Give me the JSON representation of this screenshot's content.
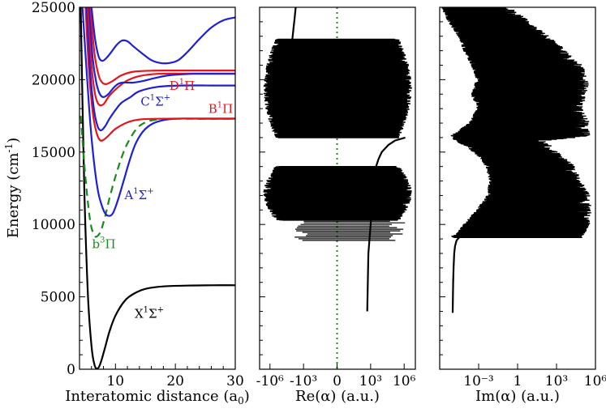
{
  "chart_data": [
    {
      "type": "line",
      "panel": "potential-curves",
      "xlabel": "Interatomic distance (a",
      "xlabel_sub": "0",
      "xlabel_tail": ")",
      "ylabel": "Energy (cm",
      "ylabel_sup": "-1",
      "ylabel_tail": ")",
      "xlim": [
        4,
        30
      ],
      "ylim": [
        0,
        25000
      ],
      "xticks": [
        10,
        20,
        30
      ],
      "yticks": [
        0,
        5000,
        10000,
        15000,
        20000,
        25000
      ],
      "xtick_labels": [
        "10",
        "20",
        "30"
      ],
      "ytick_labels": [
        "0",
        "5000",
        "10000",
        "15000",
        "20000",
        "25000"
      ],
      "grid": false,
      "colors": {
        "sigma": "#1f1fd6",
        "pi": "#e8141c",
        "triplet": "#1a8a1a",
        "ground": "#000000"
      },
      "series": [
        {
          "name": "X1Σ+",
          "label_main": "X",
          "label_sup": "1",
          "label_greek": "Σ",
          "label_sup2": "+",
          "color": "#000000",
          "style": "solid",
          "x": [
            4.2,
            4.8,
            5.4,
            6.0,
            6.5,
            7.0,
            7.5,
            8.2,
            9.0,
            10.0,
            11.5,
            13,
            15,
            18,
            22,
            26,
            30
          ],
          "y": [
            25000,
            12500,
            5200,
            1600,
            300,
            50,
            400,
            1400,
            2600,
            3700,
            4700,
            5200,
            5550,
            5720,
            5780,
            5800,
            5800
          ]
        },
        {
          "name": "b3Π",
          "label_main": "b",
          "label_sup": "3",
          "label_greek": "Π",
          "label_sup2": "",
          "color": "#1a8a1a",
          "style": "dashed",
          "x": [
            4.2,
            5.0,
            5.8,
            6.5,
            7.0,
            7.6,
            8.3,
            9.0,
            10.0,
            11.0,
            12.0,
            13.5,
            15,
            17,
            20,
            25,
            30
          ],
          "y": [
            17500,
            13200,
            10200,
            9250,
            9200,
            9600,
            10600,
            11800,
            13300,
            14600,
            15600,
            16600,
            17050,
            17250,
            17300,
            17300,
            17300
          ]
        },
        {
          "name": "A1Σ+",
          "label_main": "A",
          "label_sup": "1",
          "label_greek": "Σ",
          "label_sup2": "+",
          "color": "#1f1fd6",
          "style": "solid",
          "x": [
            4.5,
            5.2,
            6.0,
            7.0,
            8.0,
            8.8,
            9.6,
            10.5,
            11.5,
            12.5,
            13.5,
            15,
            17,
            20,
            25,
            30
          ],
          "y": [
            25000,
            20500,
            16000,
            12500,
            11000,
            10600,
            10800,
            11800,
            13200,
            14600,
            15700,
            16600,
            17100,
            17300,
            17300,
            17300
          ]
        },
        {
          "name": "B1Π",
          "label_main": "B",
          "label_sup": "1",
          "label_greek": "Π",
          "label_sup2": "",
          "color": "#e8141c",
          "style": "solid",
          "x": [
            5.0,
            5.6,
            6.2,
            6.8,
            7.5,
            8.5,
            10,
            12,
            14,
            17,
            22,
            30
          ],
          "y": [
            25000,
            20500,
            17800,
            16400,
            15800,
            16000,
            16600,
            17050,
            17250,
            17300,
            17320,
            17320
          ]
        },
        {
          "name": "",
          "color": "#1f1fd6",
          "style": "solid",
          "x": [
            5.2,
            5.8,
            6.4,
            7.0,
            7.6,
            8.3,
            9.0,
            10.0,
            11.0,
            12.5,
            14,
            17,
            21,
            26,
            30
          ],
          "y": [
            25000,
            20500,
            18000,
            16800,
            16500,
            16800,
            17300,
            17900,
            18400,
            18800,
            19200,
            19500,
            19600,
            19600,
            19600
          ]
        },
        {
          "name": "",
          "color": "#e8141c",
          "style": "solid",
          "x": [
            5.4,
            6.0,
            6.6,
            7.2,
            8.0,
            9.0,
            10.5,
            12,
            14,
            17,
            22,
            30
          ],
          "y": [
            25000,
            21000,
            19000,
            18300,
            18300,
            18900,
            19500,
            19950,
            20250,
            20400,
            20420,
            20420
          ]
        },
        {
          "name": "C1Σ+",
          "label_main": "C",
          "label_sup": "1",
          "label_greek": "Σ",
          "label_sup2": "+",
          "color": "#1f1fd6",
          "style": "solid",
          "x": [
            5.6,
            6.2,
            6.8,
            7.4,
            8.0,
            8.8,
            9.6,
            10.4,
            11.2,
            12,
            13,
            14.5,
            16.5,
            19,
            23,
            27,
            30
          ],
          "y": [
            25000,
            21500,
            19800,
            19000,
            18800,
            19000,
            19400,
            19700,
            19800,
            19800,
            19800,
            19900,
            20100,
            20300,
            20400,
            20400,
            20400
          ]
        },
        {
          "name": "D1Π",
          "label_main": "D",
          "label_sup": "1",
          "label_greek": "Π",
          "label_sup2": "",
          "color": "#e8141c",
          "style": "solid",
          "x": [
            5.8,
            6.5,
            7.2,
            7.8,
            8.5,
            9.5,
            11,
            13,
            16,
            20,
            25,
            30
          ],
          "y": [
            25000,
            21800,
            20300,
            19800,
            19700,
            19900,
            20300,
            20550,
            20620,
            20630,
            20630,
            20630
          ]
        },
        {
          "name": "",
          "color": "#1f1fd6",
          "style": "solid",
          "x": [
            6.0,
            6.6,
            7.2,
            7.8,
            8.5,
            9.3,
            10.2,
            11.1,
            12,
            13,
            14.5,
            16,
            17.5,
            19,
            20.5,
            22,
            24,
            26,
            28,
            30
          ],
          "y": [
            25000,
            22800,
            21600,
            21300,
            21500,
            21900,
            22400,
            22700,
            22650,
            22300,
            21800,
            21350,
            21150,
            21150,
            21350,
            21900,
            22800,
            23600,
            24100,
            24300
          ]
        }
      ],
      "annotations": [
        {
          "ref": "X1Σ+",
          "x": 13.2,
          "y": 3550
        },
        {
          "ref": "b3Π",
          "x": 6.1,
          "y": 8350
        },
        {
          "ref": "A1Σ+",
          "x": 11.5,
          "y": 11750
        },
        {
          "ref": "B1Π",
          "x": 25.5,
          "y": 17700
        },
        {
          "ref": "C1Σ+",
          "x": 14.2,
          "y": 18200
        },
        {
          "ref": "D1Π",
          "x": 19.0,
          "y": 19300
        }
      ]
    },
    {
      "type": "line",
      "panel": "real-polarizability",
      "xlabel": "Re(α) (a.u.)",
      "xscale": "symlog",
      "ylim": [
        0,
        25000
      ],
      "xtick_labels": [
        "-10⁶",
        "-10³",
        "0",
        "10³",
        "10⁶"
      ],
      "xtick_positions": [
        -6,
        -3,
        0,
        3,
        6
      ],
      "zero_line": {
        "color": "#1a8a1a",
        "style": "dotted"
      },
      "bands": [
        {
          "y_from": 8900,
          "y_to": 10300,
          "note": "sparse resonances"
        },
        {
          "y_from": 10300,
          "y_to": 14000,
          "note": "dense resonances"
        },
        {
          "y_from": 16000,
          "y_to": 22800,
          "note": "dense resonances"
        }
      ],
      "smooth_branches": [
        {
          "y": [
            4000,
            6000,
            8000,
            9000,
            10000,
            11000,
            12000,
            13000,
            13800
          ],
          "x": [
            2.7,
            2.75,
            2.8,
            2.9,
            3.0,
            3.1,
            3.2,
            3.3,
            3.4
          ]
        },
        {
          "y": [
            13800,
            14500,
            15000,
            15500,
            15800,
            16000
          ],
          "x": [
            3.4,
            3.7,
            4.0,
            4.6,
            5.2,
            6.1
          ]
        },
        {
          "y": [
            22800,
            23500,
            24200,
            25000
          ],
          "x": [
            -4.0,
            -3.9,
            -3.8,
            -3.7
          ]
        }
      ],
      "color": "#000000"
    },
    {
      "type": "line",
      "panel": "imaginary-polarizability",
      "xlabel": "Im(α) (a.u.)",
      "xscale": "log",
      "xlim_exp": [
        -6,
        6
      ],
      "ylim": [
        0,
        25000
      ],
      "xtick_labels": [
        "10⁻³",
        "1",
        "10³",
        "10⁶"
      ],
      "xtick_positions": [
        -3,
        0,
        3,
        6
      ],
      "envelope_lower": {
        "y": [
          9100,
          9300,
          10000,
          11000,
          12000,
          13000,
          14000,
          14800,
          15400,
          15800,
          16100,
          17000,
          18000,
          19000,
          20000,
          21000,
          22000,
          23000,
          24000,
          25000
        ],
        "x": [
          -4.8,
          -4.2,
          -3.6,
          -2.6,
          -1.8,
          -1.6,
          -1.9,
          -2.6,
          -3.4,
          -4.4,
          -4.6,
          -3.2,
          -2.6,
          -3.0,
          -2.6,
          -3.0,
          -3.6,
          -4.0,
          -4.8,
          -5.3
        ]
      },
      "envelope_upper": {
        "y": [
          9100,
          10000,
          11000,
          12000,
          13000,
          14000,
          15000,
          15800,
          16100,
          17000,
          18000,
          19000,
          20000,
          21000,
          22000,
          23000,
          24000,
          25000
        ],
        "x": [
          5.0,
          5.6,
          5.7,
          5.6,
          5.0,
          4.5,
          3.2,
          2.2,
          5.6,
          5.6,
          5.0,
          5.4,
          5.6,
          5.0,
          3.8,
          2.5,
          1.0,
          -0.5
        ]
      },
      "smooth_branch": {
        "y": [
          3900,
          5000,
          6000,
          7000,
          8000,
          8500,
          8900,
          9100
        ],
        "x": [
          -5.0,
          -4.98,
          -4.96,
          -4.93,
          -4.88,
          -4.82,
          -4.7,
          -4.5
        ]
      },
      "color": "#000000"
    }
  ]
}
